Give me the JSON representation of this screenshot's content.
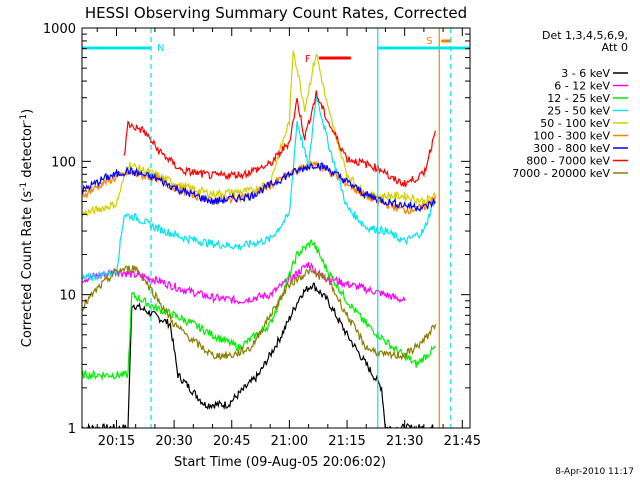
{
  "colors": {
    "3 - 6 keV": "#000000",
    "6 - 12 keV": "#ff00ff",
    "12 - 25 keV": "#00ee00",
    "25 - 50 keV": "#00e5ee",
    "50 - 100 keV": "#d0d000",
    "100 - 300 keV": "#ff7f00",
    "300 - 800 keV": "#0000ff",
    "800 - 7000 keV": "#ff0000",
    "7000 - 20000 keV": "#8b7d00"
  },
  "chart_data": {
    "type": "line",
    "title": "HESSI Observing Summary Count Rates, Corrected",
    "xlabel": "Start Time (09-Aug-05 20:06:02)",
    "ylabel_main": "Corrected Count Rate (s",
    "ylabel_sup1": "-1",
    "ylabel_mid": " detector",
    "ylabel_sup2": "-1",
    "ylabel_end": ")",
    "yscale": "log",
    "ylim": [
      1,
      1000
    ],
    "xlim": [
      "20:06:02",
      "21:47:00"
    ],
    "x_ticks": [
      "20:15",
      "20:30",
      "20:45",
      "21:00",
      "21:15",
      "21:30",
      "21:45"
    ],
    "y_ticks": [
      "1",
      "10",
      "100",
      "1000"
    ],
    "legend_header": [
      "Det 1,3,4,5,6,9,",
      "Att 0"
    ],
    "timestamp": "8-Apr-2010 11:17",
    "markers": [
      {
        "label": "N",
        "time": "20:24",
        "color": "#00e5ee"
      },
      {
        "label": "F",
        "time": "21:16",
        "color": "#ff0000"
      },
      {
        "label": "S",
        "time": "21:39",
        "color": "#ff7f00"
      }
    ],
    "series": [
      {
        "name": "3 - 6 keV",
        "x": [
          "20:06",
          "20:18",
          "20:19",
          "20:23",
          "20:29",
          "20:31",
          "20:38",
          "20:44",
          "20:52",
          "20:58",
          "21:03",
          "21:06",
          "21:10",
          "21:15",
          "21:20",
          "21:24",
          "21:25",
          "21:27",
          "21:30",
          "21:35",
          "21:38"
        ],
        "y": [
          1.0,
          1.0,
          8.5,
          7.5,
          6.0,
          2.5,
          1.5,
          1.5,
          2.5,
          5.0,
          10.0,
          12.0,
          9.0,
          5.0,
          3.0,
          2.0,
          1.0,
          1.0,
          1.0,
          1.0,
          1.0
        ]
      },
      {
        "name": "6 - 12 keV",
        "x": [
          "20:06",
          "20:15",
          "20:20",
          "20:25",
          "20:32",
          "20:40",
          "20:47",
          "20:55",
          "21:00",
          "21:05",
          "21:08",
          "21:15",
          "21:20",
          "21:25",
          "21:30"
        ],
        "y": [
          13,
          15,
          14,
          13,
          11,
          9.5,
          9,
          10,
          13,
          17,
          14,
          12,
          11,
          10,
          9
        ]
      },
      {
        "name": "12 - 25 keV",
        "x": [
          "20:06",
          "20:18",
          "20:19",
          "20:22",
          "20:25",
          "20:30",
          "20:35",
          "20:40",
          "20:47",
          "20:55",
          "21:00",
          "21:02",
          "21:06",
          "21:10",
          "21:15",
          "21:20",
          "21:27",
          "21:33",
          "21:38"
        ],
        "y": [
          2.5,
          2.5,
          10,
          9,
          8,
          7,
          6,
          5,
          4,
          6,
          14,
          20,
          25,
          15,
          9,
          6,
          4,
          3,
          4
        ]
      },
      {
        "name": "25 - 50 keV",
        "x": [
          "20:06",
          "20:15",
          "20:17",
          "20:20",
          "20:25",
          "20:32",
          "20:40",
          "20:47",
          "20:55",
          "21:00",
          "21:02",
          "21:05",
          "21:07",
          "21:10",
          "21:15",
          "21:20",
          "21:25",
          "21:30",
          "21:35",
          "21:38"
        ],
        "y": [
          13,
          15,
          40,
          38,
          32,
          27,
          24,
          23,
          26,
          40,
          200,
          90,
          320,
          140,
          45,
          32,
          30,
          25,
          30,
          55
        ]
      },
      {
        "name": "50 - 100 keV",
        "x": [
          "20:06",
          "20:15",
          "20:18",
          "20:25",
          "20:32",
          "20:40",
          "20:50",
          "20:55",
          "21:00",
          "21:01",
          "21:04",
          "21:07",
          "21:10",
          "21:15",
          "21:20",
          "21:25",
          "21:30",
          "21:35",
          "21:38"
        ],
        "y": [
          40,
          48,
          95,
          80,
          65,
          57,
          60,
          70,
          200,
          700,
          250,
          650,
          250,
          80,
          55,
          55,
          55,
          50,
          55
        ]
      },
      {
        "name": "100 - 300 keV",
        "x": [
          "20:06",
          "20:12",
          "20:18",
          "20:25",
          "20:32",
          "20:40",
          "20:50",
          "21:00",
          "21:05",
          "21:07",
          "21:10",
          "21:15",
          "21:20",
          "21:25",
          "21:30",
          "21:35",
          "21:38"
        ],
        "y": [
          55,
          70,
          82,
          75,
          60,
          50,
          55,
          80,
          93,
          95,
          85,
          68,
          55,
          48,
          43,
          45,
          55
        ]
      },
      {
        "name": "300 - 800 keV",
        "x": [
          "20:06",
          "20:12",
          "20:18",
          "20:25",
          "20:32",
          "20:40",
          "20:50",
          "21:00",
          "21:05",
          "21:07",
          "21:10",
          "21:15",
          "21:20",
          "21:25",
          "21:30",
          "21:35",
          "21:38"
        ],
        "y": [
          60,
          75,
          85,
          75,
          60,
          50,
          55,
          80,
          92,
          95,
          88,
          70,
          56,
          50,
          47,
          45,
          50
        ]
      },
      {
        "name": "800 - 7000 keV",
        "x": [
          "20:17",
          "20:18",
          "20:22",
          "20:26",
          "20:32",
          "20:40",
          "20:48",
          "20:55",
          "21:00",
          "21:02",
          "21:04",
          "21:07",
          "21:10",
          "21:15",
          "21:20",
          "21:25",
          "21:26",
          "21:30",
          "21:35",
          "21:38"
        ],
        "y": [
          110,
          190,
          170,
          120,
          85,
          78,
          80,
          95,
          140,
          290,
          150,
          320,
          200,
          105,
          95,
          85,
          75,
          68,
          80,
          170
        ]
      },
      {
        "name": "7000 - 20000 keV",
        "x": [
          "20:06",
          "20:10",
          "20:15",
          "20:20",
          "20:25",
          "20:30",
          "20:35",
          "20:40",
          "20:45",
          "20:50",
          "20:55",
          "21:00",
          "21:05",
          "21:10",
          "21:15",
          "21:20",
          "21:25",
          "21:30",
          "21:35",
          "21:38"
        ],
        "y": [
          8,
          11,
          15,
          16,
          10,
          6,
          4.5,
          3.5,
          3.5,
          4,
          7,
          12,
          15,
          13,
          7,
          4,
          3.5,
          3.5,
          4.5,
          6
        ]
      }
    ]
  }
}
